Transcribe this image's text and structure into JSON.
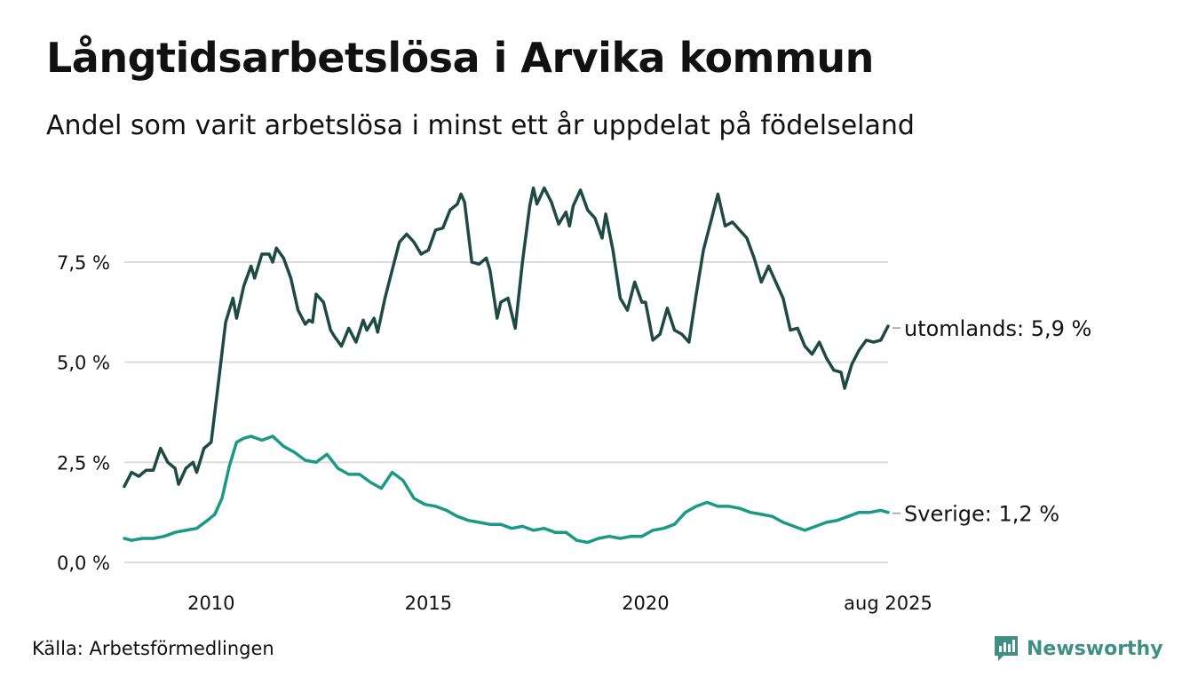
{
  "title": "Långtidsarbetslösa i Arvika kommun",
  "subtitle": "Andel som varit arbetslösa i minst ett år uppdelat på födelseland",
  "source": "Källa: Arbetsförmedlingen",
  "brand": "Newsworthy",
  "colors": {
    "utomlands": "#1f4a44",
    "sverige": "#1a9a86",
    "grid": "#dcdcdc",
    "brand": "#3f8f82"
  },
  "chart_data": {
    "type": "line",
    "x_range": [
      "2008-01",
      "2025-08"
    ],
    "ylim": [
      0,
      9.5
    ],
    "y_ticks": [
      {
        "value": 0,
        "label": "0,0 %"
      },
      {
        "value": 2.5,
        "label": "2,5 %"
      },
      {
        "value": 5.0,
        "label": "5,0 %"
      },
      {
        "value": 7.5,
        "label": "7,5 %"
      }
    ],
    "x_ticks": [
      {
        "date": "2010-01",
        "label": "2010"
      },
      {
        "date": "2015-01",
        "label": "2015"
      },
      {
        "date": "2020-01",
        "label": "2020"
      },
      {
        "date": "2025-08",
        "label": "aug 2025"
      }
    ],
    "grid": true,
    "series": [
      {
        "name": "utomlands",
        "end_label": "utomlands: 5,9 %",
        "points": [
          [
            "2008-01",
            1.9
          ],
          [
            "2008-03",
            2.25
          ],
          [
            "2008-05",
            2.15
          ],
          [
            "2008-07",
            2.3
          ],
          [
            "2008-09",
            2.3
          ],
          [
            "2008-11",
            2.85
          ],
          [
            "2009-01",
            2.5
          ],
          [
            "2009-03",
            2.35
          ],
          [
            "2009-04",
            1.95
          ],
          [
            "2009-06",
            2.35
          ],
          [
            "2009-08",
            2.5
          ],
          [
            "2009-09",
            2.25
          ],
          [
            "2009-11",
            2.85
          ],
          [
            "2010-01",
            3.0
          ],
          [
            "2010-03",
            4.5
          ],
          [
            "2010-05",
            6.0
          ],
          [
            "2010-07",
            6.6
          ],
          [
            "2010-08",
            6.1
          ],
          [
            "2010-10",
            6.9
          ],
          [
            "2010-12",
            7.4
          ],
          [
            "2011-01",
            7.1
          ],
          [
            "2011-03",
            7.7
          ],
          [
            "2011-05",
            7.7
          ],
          [
            "2011-06",
            7.5
          ],
          [
            "2011-07",
            7.85
          ],
          [
            "2011-09",
            7.6
          ],
          [
            "2011-11",
            7.1
          ],
          [
            "2012-01",
            6.3
          ],
          [
            "2012-03",
            5.95
          ],
          [
            "2012-04",
            6.05
          ],
          [
            "2012-05",
            6.0
          ],
          [
            "2012-06",
            6.7
          ],
          [
            "2012-08",
            6.5
          ],
          [
            "2012-10",
            5.8
          ],
          [
            "2012-11",
            5.65
          ],
          [
            "2013-01",
            5.4
          ],
          [
            "2013-03",
            5.85
          ],
          [
            "2013-05",
            5.5
          ],
          [
            "2013-07",
            6.05
          ],
          [
            "2013-08",
            5.8
          ],
          [
            "2013-10",
            6.1
          ],
          [
            "2013-11",
            5.75
          ],
          [
            "2014-01",
            6.6
          ],
          [
            "2014-03",
            7.3
          ],
          [
            "2014-05",
            8.0
          ],
          [
            "2014-07",
            8.2
          ],
          [
            "2014-09",
            8.0
          ],
          [
            "2014-11",
            7.7
          ],
          [
            "2015-01",
            7.8
          ],
          [
            "2015-03",
            8.3
          ],
          [
            "2015-05",
            8.35
          ],
          [
            "2015-07",
            8.8
          ],
          [
            "2015-09",
            8.95
          ],
          [
            "2015-10",
            9.2
          ],
          [
            "2015-11",
            9.0
          ],
          [
            "2016-01",
            7.5
          ],
          [
            "2016-03",
            7.45
          ],
          [
            "2016-05",
            7.6
          ],
          [
            "2016-06",
            7.3
          ],
          [
            "2016-08",
            6.1
          ],
          [
            "2016-09",
            6.5
          ],
          [
            "2016-11",
            6.6
          ],
          [
            "2017-01",
            5.85
          ],
          [
            "2017-03",
            7.5
          ],
          [
            "2017-05",
            8.9
          ],
          [
            "2017-06",
            9.35
          ],
          [
            "2017-07",
            8.95
          ],
          [
            "2017-09",
            9.35
          ],
          [
            "2017-11",
            9.0
          ],
          [
            "2018-01",
            8.45
          ],
          [
            "2018-03",
            8.75
          ],
          [
            "2018-04",
            8.4
          ],
          [
            "2018-05",
            8.9
          ],
          [
            "2018-07",
            9.3
          ],
          [
            "2018-09",
            8.8
          ],
          [
            "2018-11",
            8.6
          ],
          [
            "2019-01",
            8.1
          ],
          [
            "2019-02",
            8.7
          ],
          [
            "2019-04",
            7.8
          ],
          [
            "2019-06",
            6.6
          ],
          [
            "2019-08",
            6.3
          ],
          [
            "2019-10",
            7.0
          ],
          [
            "2019-12",
            6.5
          ],
          [
            "2020-01",
            6.5
          ],
          [
            "2020-03",
            5.55
          ],
          [
            "2020-05",
            5.7
          ],
          [
            "2020-07",
            6.35
          ],
          [
            "2020-09",
            5.8
          ],
          [
            "2020-11",
            5.7
          ],
          [
            "2021-01",
            5.5
          ],
          [
            "2021-03",
            6.7
          ],
          [
            "2021-05",
            7.8
          ],
          [
            "2021-07",
            8.5
          ],
          [
            "2021-09",
            9.2
          ],
          [
            "2021-11",
            8.4
          ],
          [
            "2022-01",
            8.5
          ],
          [
            "2022-03",
            8.3
          ],
          [
            "2022-05",
            8.1
          ],
          [
            "2022-07",
            7.6
          ],
          [
            "2022-09",
            7.0
          ],
          [
            "2022-11",
            7.4
          ],
          [
            "2023-01",
            7.0
          ],
          [
            "2023-03",
            6.6
          ],
          [
            "2023-05",
            5.8
          ],
          [
            "2023-07",
            5.85
          ],
          [
            "2023-09",
            5.4
          ],
          [
            "2023-11",
            5.2
          ],
          [
            "2024-01",
            5.5
          ],
          [
            "2024-03",
            5.1
          ],
          [
            "2024-05",
            4.8
          ],
          [
            "2024-07",
            4.75
          ],
          [
            "2024-08",
            4.35
          ],
          [
            "2024-10",
            4.95
          ],
          [
            "2024-12",
            5.3
          ],
          [
            "2025-02",
            5.55
          ],
          [
            "2025-04",
            5.5
          ],
          [
            "2025-06",
            5.55
          ],
          [
            "2025-08",
            5.9
          ]
        ]
      },
      {
        "name": "Sverige",
        "end_label": "Sverige: 1,2 %",
        "points": [
          [
            "2008-01",
            0.6
          ],
          [
            "2008-03",
            0.55
          ],
          [
            "2008-06",
            0.6
          ],
          [
            "2008-09",
            0.6
          ],
          [
            "2008-12",
            0.65
          ],
          [
            "2009-03",
            0.75
          ],
          [
            "2009-06",
            0.8
          ],
          [
            "2009-09",
            0.85
          ],
          [
            "2009-12",
            1.05
          ],
          [
            "2010-02",
            1.2
          ],
          [
            "2010-04",
            1.6
          ],
          [
            "2010-06",
            2.4
          ],
          [
            "2010-08",
            3.0
          ],
          [
            "2010-10",
            3.1
          ],
          [
            "2010-12",
            3.15
          ],
          [
            "2011-03",
            3.05
          ],
          [
            "2011-06",
            3.15
          ],
          [
            "2011-09",
            2.9
          ],
          [
            "2011-12",
            2.75
          ],
          [
            "2012-03",
            2.55
          ],
          [
            "2012-06",
            2.5
          ],
          [
            "2012-09",
            2.7
          ],
          [
            "2012-12",
            2.35
          ],
          [
            "2013-03",
            2.2
          ],
          [
            "2013-06",
            2.2
          ],
          [
            "2013-09",
            2.0
          ],
          [
            "2013-12",
            1.85
          ],
          [
            "2014-03",
            2.25
          ],
          [
            "2014-06",
            2.05
          ],
          [
            "2014-09",
            1.6
          ],
          [
            "2014-12",
            1.45
          ],
          [
            "2015-03",
            1.4
          ],
          [
            "2015-06",
            1.3
          ],
          [
            "2015-09",
            1.15
          ],
          [
            "2015-12",
            1.05
          ],
          [
            "2016-03",
            1.0
          ],
          [
            "2016-06",
            0.95
          ],
          [
            "2016-09",
            0.95
          ],
          [
            "2016-12",
            0.85
          ],
          [
            "2017-03",
            0.9
          ],
          [
            "2017-06",
            0.8
          ],
          [
            "2017-09",
            0.85
          ],
          [
            "2017-12",
            0.75
          ],
          [
            "2018-03",
            0.75
          ],
          [
            "2018-06",
            0.55
          ],
          [
            "2018-09",
            0.5
          ],
          [
            "2018-12",
            0.6
          ],
          [
            "2019-03",
            0.65
          ],
          [
            "2019-06",
            0.6
          ],
          [
            "2019-09",
            0.65
          ],
          [
            "2019-12",
            0.65
          ],
          [
            "2020-03",
            0.8
          ],
          [
            "2020-06",
            0.85
          ],
          [
            "2020-09",
            0.95
          ],
          [
            "2020-12",
            1.25
          ],
          [
            "2021-03",
            1.4
          ],
          [
            "2021-06",
            1.5
          ],
          [
            "2021-09",
            1.4
          ],
          [
            "2021-12",
            1.4
          ],
          [
            "2022-03",
            1.35
          ],
          [
            "2022-06",
            1.25
          ],
          [
            "2022-09",
            1.2
          ],
          [
            "2022-12",
            1.15
          ],
          [
            "2023-03",
            1.0
          ],
          [
            "2023-06",
            0.9
          ],
          [
            "2023-09",
            0.8
          ],
          [
            "2023-12",
            0.9
          ],
          [
            "2024-03",
            1.0
          ],
          [
            "2024-06",
            1.05
          ],
          [
            "2024-09",
            1.15
          ],
          [
            "2024-12",
            1.25
          ],
          [
            "2025-03",
            1.25
          ],
          [
            "2025-06",
            1.3
          ],
          [
            "2025-08",
            1.25
          ]
        ]
      }
    ]
  }
}
